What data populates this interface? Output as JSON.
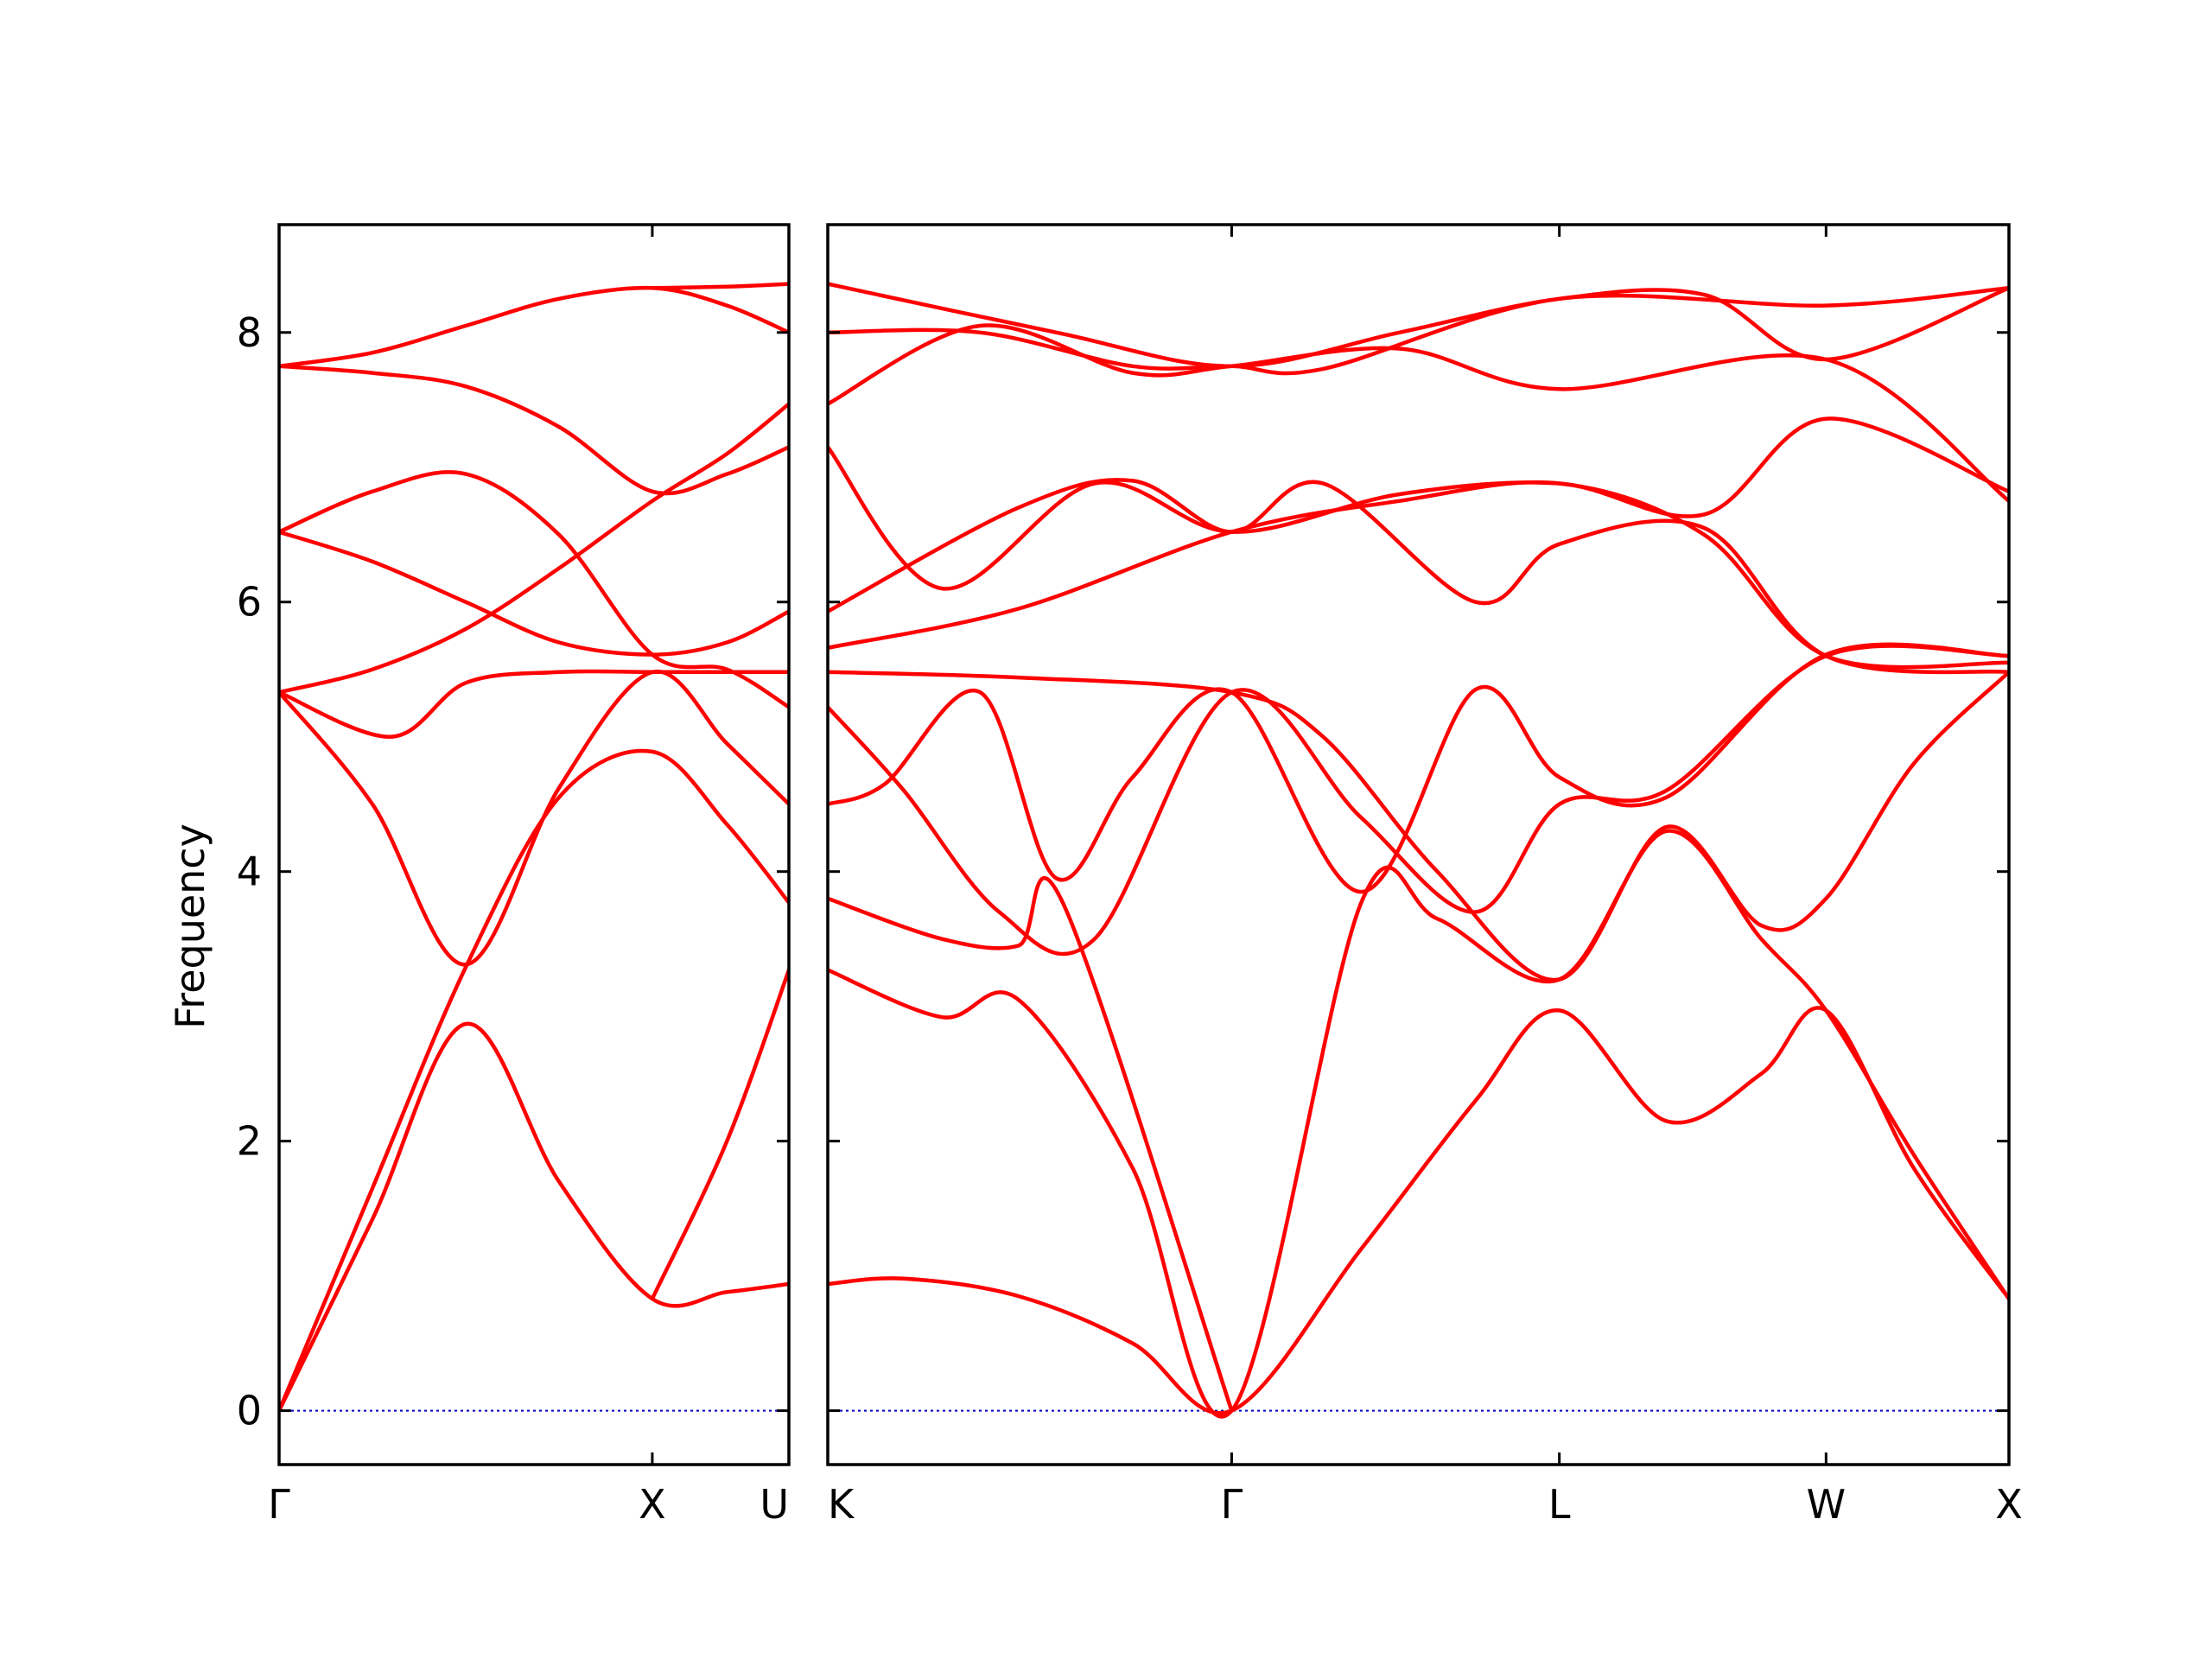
{
  "chart_data": {
    "type": "line",
    "title": "",
    "ylabel": "Frequency",
    "xlabel": "",
    "ylim": [
      -0.4,
      8.8
    ],
    "yticks": [
      0,
      2,
      4,
      6,
      8
    ],
    "grid": false,
    "legend": "none",
    "colors": {
      "band": "#ff0000",
      "zero": "#0000cc",
      "frame": "#000000"
    },
    "panels": [
      {
        "id": "left",
        "xlim": [
          0,
          1.366
        ],
        "ticks": [
          {
            "x": 0,
            "label": "Γ"
          },
          {
            "x": 1.0,
            "label": "X"
          },
          {
            "x": 1.366,
            "label": "U"
          }
        ],
        "series": [
          {
            "values": [
              [
                0,
                0
              ],
              [
                0.25,
                1.42
              ],
              [
                0.5,
                2.87
              ],
              [
                0.75,
                1.7
              ],
              [
                1.0,
                0.83
              ],
              [
                1.2,
                0.88
              ],
              [
                1.366,
                0.94
              ]
            ]
          },
          {
            "values": [
              [
                0,
                0
              ],
              [
                0.25,
                1.65
              ],
              [
                0.5,
                3.29
              ],
              [
                0.75,
                4.55
              ],
              [
                1.0,
                4.89
              ],
              [
                1.2,
                4.35
              ],
              [
                1.366,
                3.77
              ]
            ]
          },
          {
            "values": [
              [
                0,
                5.33
              ],
              [
                0.25,
                4.5
              ],
              [
                0.5,
                3.31
              ],
              [
                0.75,
                4.62
              ],
              [
                1.0,
                5.48
              ],
              [
                1.2,
                4.95
              ],
              [
                1.366,
                4.5
              ]
            ]
          },
          {
            "values": [
              [
                0,
                5.33
              ],
              [
                0.25,
                5.5
              ],
              [
                0.5,
                5.8
              ],
              [
                0.75,
                6.25
              ],
              [
                1.0,
                6.75
              ],
              [
                1.2,
                7.1
              ],
              [
                1.366,
                7.47
              ]
            ]
          },
          {
            "values": [
              [
                0,
                6.52
              ],
              [
                0.25,
                6.3
              ],
              [
                0.5,
                6.0
              ],
              [
                0.75,
                5.7
              ],
              [
                1.0,
                5.61
              ],
              [
                1.2,
                5.7
              ],
              [
                1.366,
                5.93
              ]
            ]
          },
          {
            "values": [
              [
                0,
                6.52
              ],
              [
                0.25,
                6.82
              ],
              [
                0.5,
                6.95
              ],
              [
                0.75,
                6.5
              ],
              [
                1.0,
                5.61
              ],
              [
                1.2,
                5.5
              ],
              [
                1.366,
                5.22
              ]
            ]
          },
          {
            "values": [
              [
                0,
                7.75
              ],
              [
                0.25,
                7.7
              ],
              [
                0.5,
                7.6
              ],
              [
                0.75,
                7.3
              ],
              [
                1.0,
                6.82
              ],
              [
                1.2,
                6.95
              ],
              [
                1.366,
                7.15
              ]
            ]
          },
          {
            "values": [
              [
                0,
                7.75
              ],
              [
                0.25,
                7.85
              ],
              [
                0.5,
                8.05
              ],
              [
                0.75,
                8.25
              ],
              [
                1.0,
                8.33
              ],
              [
                1.2,
                8.2
              ],
              [
                1.366,
                8.0
              ]
            ]
          },
          {
            "values": [
              [
                0,
                5.33
              ],
              [
                0.3,
                5.0
              ],
              [
                0.5,
                5.4
              ],
              [
                0.75,
                5.48
              ],
              [
                1.0,
                5.48
              ],
              [
                1.2,
                5.48
              ],
              [
                1.366,
                5.48
              ]
            ]
          },
          {
            "values": [
              [
                1.0,
                0.83
              ],
              [
                1.2,
                2.0
              ],
              [
                1.366,
                3.27
              ]
            ]
          },
          {
            "values": [
              [
                1.0,
                8.33
              ],
              [
                1.2,
                8.34
              ],
              [
                1.366,
                8.36
              ]
            ]
          }
        ]
      },
      {
        "id": "right",
        "xlim": [
          0,
          3.1
        ],
        "ticks": [
          {
            "x": 0,
            "label": "K"
          },
          {
            "x": 1.06,
            "label": "Γ"
          },
          {
            "x": 1.92,
            "label": "L"
          },
          {
            "x": 2.62,
            "label": "W"
          },
          {
            "x": 3.1,
            "label": "X"
          }
        ],
        "series": [
          {
            "values": [
              [
                0,
                0.94
              ],
              [
                0.2,
                0.98
              ],
              [
                0.5,
                0.85
              ],
              [
                0.8,
                0.5
              ],
              [
                1.06,
                0.0
              ],
              [
                1.4,
                1.2
              ],
              [
                1.7,
                2.3
              ],
              [
                1.92,
                2.97
              ],
              [
                2.2,
                2.15
              ],
              [
                2.45,
                2.5
              ],
              [
                2.62,
                2.97
              ],
              [
                2.85,
                1.8
              ],
              [
                3.1,
                0.83
              ]
            ]
          },
          {
            "values": [
              [
                0,
                3.27
              ],
              [
                0.3,
                2.92
              ],
              [
                0.5,
                3.05
              ],
              [
                0.8,
                1.8
              ],
              [
                1.06,
                0.0
              ],
              [
                1.4,
                3.77
              ],
              [
                1.6,
                3.65
              ],
              [
                1.92,
                3.2
              ],
              [
                2.2,
                4.3
              ],
              [
                2.45,
                3.5
              ],
              [
                2.62,
                2.97
              ],
              [
                2.85,
                1.9
              ],
              [
                3.1,
                0.83
              ]
            ]
          },
          {
            "values": [
              [
                0,
                3.8
              ],
              [
                0.3,
                3.5
              ],
              [
                0.5,
                3.45
              ],
              [
                0.62,
                3.75
              ],
              [
                1.06,
                0.0
              ]
            ]
          },
          {
            "values": [
              [
                0,
                4.5
              ],
              [
                0.15,
                4.65
              ],
              [
                0.4,
                5.33
              ],
              [
                0.6,
                3.95
              ],
              [
                0.8,
                4.7
              ],
              [
                1.06,
                5.33
              ],
              [
                1.4,
                3.85
              ],
              [
                1.7,
                5.35
              ],
              [
                1.92,
                4.7
              ],
              [
                2.2,
                4.55
              ],
              [
                2.62,
                5.61
              ],
              [
                3.1,
                5.6
              ]
            ]
          },
          {
            "values": [
              [
                0,
                5.22
              ],
              [
                0.2,
                4.6
              ],
              [
                0.45,
                3.7
              ],
              [
                0.7,
                3.5
              ],
              [
                1.06,
                5.33
              ],
              [
                1.4,
                4.4
              ],
              [
                1.7,
                3.7
              ],
              [
                1.92,
                4.5
              ],
              [
                2.2,
                4.6
              ],
              [
                2.62,
                5.6
              ],
              [
                3.1,
                5.6
              ]
            ]
          },
          {
            "values": [
              [
                0,
                5.48
              ],
              [
                0.5,
                5.44
              ],
              [
                1.06,
                5.33
              ],
              [
                1.3,
                5.0
              ],
              [
                1.6,
                4.0
              ],
              [
                1.92,
                3.2
              ],
              [
                2.2,
                4.33
              ],
              [
                2.45,
                3.6
              ],
              [
                2.62,
                3.8
              ],
              [
                2.85,
                4.8
              ],
              [
                3.1,
                5.48
              ]
            ]
          },
          {
            "values": [
              [
                0,
                5.66
              ],
              [
                0.5,
                5.95
              ],
              [
                1.06,
                6.52
              ],
              [
                1.5,
                6.75
              ],
              [
                1.92,
                6.88
              ],
              [
                2.3,
                6.5
              ],
              [
                2.62,
                5.6
              ],
              [
                3.1,
                5.55
              ]
            ]
          },
          {
            "values": [
              [
                0,
                5.93
              ],
              [
                0.5,
                6.7
              ],
              [
                0.8,
                6.9
              ],
              [
                1.06,
                6.52
              ],
              [
                1.3,
                6.88
              ],
              [
                1.7,
                6.0
              ],
              [
                1.92,
                6.43
              ],
              [
                2.3,
                6.55
              ],
              [
                2.62,
                5.6
              ],
              [
                3.1,
                5.48
              ]
            ]
          },
          {
            "values": [
              [
                0,
                7.15
              ],
              [
                0.3,
                6.1
              ],
              [
                0.7,
                6.88
              ],
              [
                1.06,
                6.52
              ],
              [
                1.5,
                6.8
              ],
              [
                1.92,
                6.88
              ],
              [
                2.3,
                6.65
              ],
              [
                2.62,
                7.36
              ],
              [
                3.1,
                6.82
              ]
            ]
          },
          {
            "values": [
              [
                0,
                7.47
              ],
              [
                0.4,
                8.05
              ],
              [
                0.8,
                7.7
              ],
              [
                1.06,
                7.75
              ],
              [
                1.5,
                7.88
              ],
              [
                1.92,
                7.58
              ],
              [
                2.62,
                7.8
              ],
              [
                3.1,
                6.75
              ]
            ]
          },
          {
            "values": [
              [
                0,
                8.0
              ],
              [
                0.4,
                8.0
              ],
              [
                0.8,
                7.75
              ],
              [
                1.06,
                7.75
              ],
              [
                1.3,
                7.73
              ],
              [
                1.92,
                8.25
              ],
              [
                2.62,
                8.2
              ],
              [
                3.1,
                8.33
              ]
            ]
          },
          {
            "values": [
              [
                0,
                8.36
              ],
              [
                0.6,
                8.0
              ],
              [
                1.06,
                7.75
              ],
              [
                1.5,
                8.0
              ],
              [
                1.92,
                8.25
              ],
              [
                2.3,
                8.28
              ],
              [
                2.62,
                7.8
              ],
              [
                3.1,
                8.33
              ]
            ]
          }
        ]
      }
    ]
  }
}
